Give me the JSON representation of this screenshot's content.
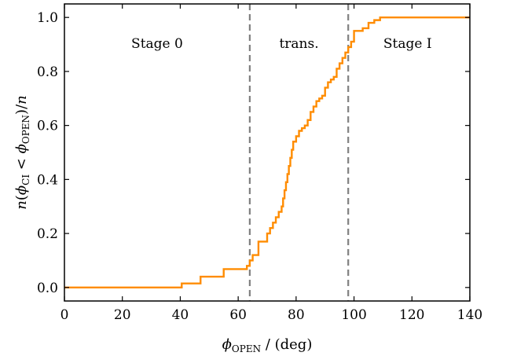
{
  "chart_data": {
    "type": "line",
    "xlabel": {
      "symbol": "ϕ",
      "sub": "OPEN",
      "rest": " / (deg)"
    },
    "ylabel": {
      "n1": "n",
      "open": "(",
      "phi1": "ϕ",
      "sub1": "CI",
      "lt": " < ",
      "phi2": "ϕ",
      "sub2": "OPEN",
      "close": ")/",
      "n2": "n"
    },
    "xlim": [
      0,
      140
    ],
    "ylim": [
      -0.05,
      1.05
    ],
    "xticks": [
      "0",
      "20",
      "40",
      "60",
      "80",
      "100",
      "120",
      "140"
    ],
    "yticks": [
      "0.0",
      "0.2",
      "0.4",
      "0.6",
      "0.8",
      "1.0"
    ],
    "vlines": [
      64,
      98
    ],
    "regions": [
      {
        "label": "Stage 0",
        "x": 32
      },
      {
        "label": "trans.",
        "x": 81
      },
      {
        "label": "Stage I",
        "x": 118.5
      }
    ],
    "series": [
      {
        "color": "#ff8c00",
        "step": true,
        "x": [
          0,
          40.5,
          47,
          55,
          63,
          64,
          65,
          67,
          70,
          71,
          72,
          73,
          74,
          75,
          75.5,
          76,
          76.5,
          77,
          77.5,
          78,
          78.5,
          79,
          80,
          81,
          82,
          83,
          84,
          85,
          86,
          87,
          88,
          89,
          90,
          91,
          92,
          93,
          94,
          95,
          96,
          97,
          98,
          99,
          100,
          101,
          103,
          105,
          107,
          109,
          140
        ],
        "y": [
          0.0,
          0.015,
          0.04,
          0.068,
          0.08,
          0.1,
          0.12,
          0.17,
          0.2,
          0.22,
          0.24,
          0.26,
          0.28,
          0.3,
          0.33,
          0.36,
          0.39,
          0.42,
          0.45,
          0.48,
          0.51,
          0.54,
          0.56,
          0.58,
          0.59,
          0.6,
          0.62,
          0.65,
          0.67,
          0.69,
          0.7,
          0.71,
          0.74,
          0.76,
          0.77,
          0.78,
          0.81,
          0.83,
          0.85,
          0.87,
          0.89,
          0.91,
          0.95,
          0.95,
          0.96,
          0.98,
          0.99,
          1.0,
          1.0
        ]
      }
    ]
  }
}
